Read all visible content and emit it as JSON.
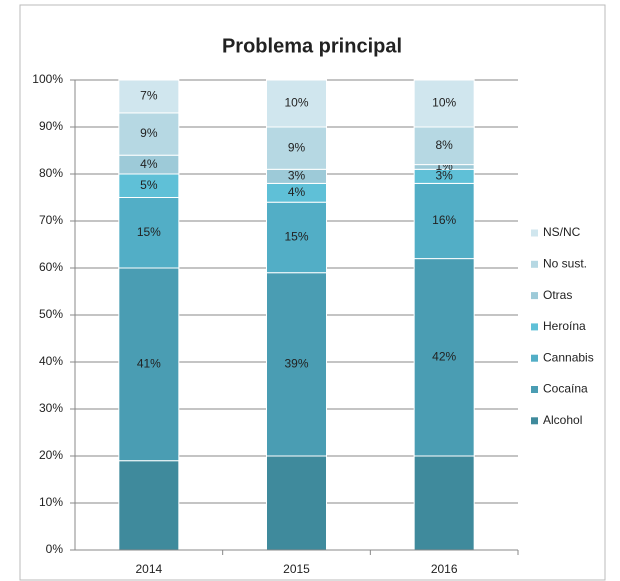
{
  "chart_data": {
    "type": "stacked_bar",
    "title": "Problema principal",
    "categories": [
      "2014",
      "2015",
      "2016"
    ],
    "series": [
      {
        "name": "Alcohol",
        "color": "#3f8a9c",
        "values": [
          19,
          20,
          20
        ]
      },
      {
        "name": "Cocaína",
        "color": "#4a9db3",
        "values": [
          41,
          39,
          42
        ],
        "value_labels": [
          "41%",
          "39%",
          "42%"
        ]
      },
      {
        "name": "Cannabis",
        "color": "#52aec6",
        "values": [
          15,
          15,
          16
        ],
        "value_labels": [
          "15%",
          "15%",
          "16%"
        ]
      },
      {
        "name": "Heroína",
        "color": "#5fc0d7",
        "values": [
          5,
          4,
          3
        ],
        "value_labels": [
          "5%",
          "4%",
          "3%"
        ]
      },
      {
        "name": "Otras",
        "color": "#9dcad8",
        "values": [
          4,
          3,
          1
        ],
        "value_labels": [
          "4%",
          "3%",
          "1%"
        ]
      },
      {
        "name": "No sust.",
        "color": "#b6d8e3",
        "values": [
          9,
          9,
          8
        ],
        "value_labels": [
          "9%",
          "9%",
          "8%"
        ]
      },
      {
        "name": "NS/NC",
        "color": "#d0e6ee",
        "values": [
          7,
          10,
          10
        ],
        "value_labels": [
          "7%",
          "10%",
          "10%"
        ]
      }
    ],
    "ylim": [
      0,
      100
    ],
    "yticks": [
      {
        "value": 0,
        "label": "0%"
      },
      {
        "value": 10,
        "label": "10%"
      },
      {
        "value": 20,
        "label": "20%"
      },
      {
        "value": 30,
        "label": "30%"
      },
      {
        "value": 40,
        "label": "40%"
      },
      {
        "value": 50,
        "label": "50%"
      },
      {
        "value": 60,
        "label": "60%"
      },
      {
        "value": 70,
        "label": "70%"
      },
      {
        "value": 80,
        "label": "80%"
      },
      {
        "value": 90,
        "label": "90%"
      },
      {
        "value": 100,
        "label": "100%"
      }
    ],
    "grid": true,
    "legend": "right"
  }
}
